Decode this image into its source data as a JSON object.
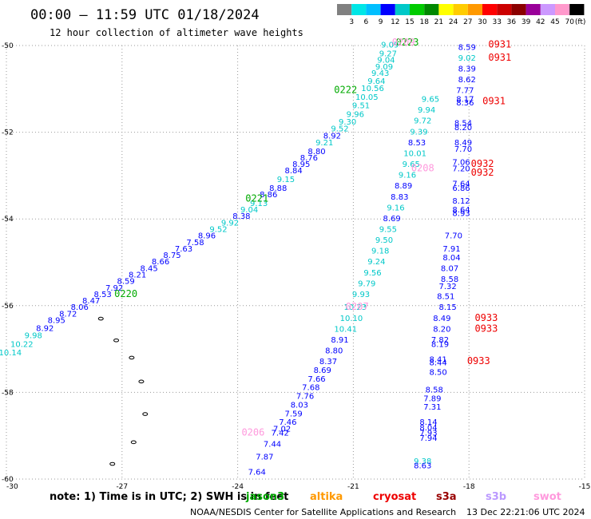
{
  "chart_data": {
    "type": "scatter",
    "title": "00:00 — 11:59 UTC 01/18/2024",
    "subtitle": "12 hour collection of altimeter wave heights",
    "xlabel": "",
    "ylabel": "",
    "xlim": [
      -30,
      -15
    ],
    "ylim": [
      -60,
      -50
    ],
    "x_ticks": [
      "-30",
      "-27",
      "-24",
      "-21",
      "-18",
      "-15"
    ],
    "y_ticks": [
      "-50",
      "-52",
      "-54",
      "-56",
      "-58",
      "-60"
    ],
    "grid": true,
    "colorbar": {
      "unit": "(ft)",
      "labels": [
        "3",
        "6",
        "9",
        "12",
        "15",
        "18",
        "21",
        "24",
        "27",
        "30",
        "33",
        "36",
        "39",
        "42",
        "45",
        "70"
      ],
      "colors": [
        "#808080",
        "#00e6e6",
        "#00bfff",
        "#0000ff",
        "#00c8c8",
        "#00cc00",
        "#008800",
        "#ffff00",
        "#ffcc00",
        "#ff9900",
        "#ff0000",
        "#cc0000",
        "#8b0000",
        "#990099",
        "#cc99ff",
        "#ff99cc",
        "#000000"
      ]
    },
    "series": [
      {
        "name": "jason3",
        "passes": [
          {
            "label": "0220",
            "lon": -26.9,
            "lat": -55.8
          },
          {
            "label": "0221",
            "lon": -23.5,
            "lat": -53.6
          },
          {
            "label": "0222",
            "lon": -21.2,
            "lat": -51.1
          },
          {
            "label": "0223",
            "lon": -19.6,
            "lat": -50.0
          }
        ],
        "points": [
          {
            "lon": -29.9,
            "lat": -57.15,
            "swh": "10.14"
          },
          {
            "lon": -29.6,
            "lat": -56.95,
            "swh": "10.22"
          },
          {
            "lon": -29.3,
            "lat": -56.75,
            "swh": "9.98"
          },
          {
            "lon": -29.0,
            "lat": -56.58,
            "swh": "8.92"
          },
          {
            "lon": -28.7,
            "lat": -56.4,
            "swh": "8.95"
          },
          {
            "lon": -28.4,
            "lat": -56.25,
            "swh": "8.72"
          },
          {
            "lon": -28.1,
            "lat": -56.1,
            "swh": "8.06"
          },
          {
            "lon": -27.8,
            "lat": -55.95,
            "swh": "8.47"
          },
          {
            "lon": -27.5,
            "lat": -55.8,
            "swh": "8.53"
          },
          {
            "lon": -27.2,
            "lat": -55.65,
            "swh": "7.92"
          },
          {
            "lon": -26.9,
            "lat": -55.5,
            "swh": "8.59"
          },
          {
            "lon": -26.6,
            "lat": -55.35,
            "swh": "8.21"
          },
          {
            "lon": -26.3,
            "lat": -55.2,
            "swh": "8.45"
          },
          {
            "lon": -26.0,
            "lat": -55.05,
            "swh": "8.66"
          },
          {
            "lon": -25.7,
            "lat": -54.9,
            "swh": "8.75"
          },
          {
            "lon": -25.4,
            "lat": -54.75,
            "swh": "7.63"
          },
          {
            "lon": -25.1,
            "lat": -54.6,
            "swh": "7.58"
          },
          {
            "lon": -24.8,
            "lat": -54.45,
            "swh": "8.96"
          },
          {
            "lon": -24.5,
            "lat": -54.3,
            "swh": "9.52"
          },
          {
            "lon": -24.2,
            "lat": -54.15,
            "swh": "9.92"
          },
          {
            "lon": -23.9,
            "lat": -54.0,
            "swh": "8.38"
          },
          {
            "lon": -23.7,
            "lat": -53.85,
            "swh": "9.04"
          },
          {
            "lon": -23.45,
            "lat": -53.7,
            "swh": "9.13"
          },
          {
            "lon": -23.2,
            "lat": -53.5,
            "swh": "8.86"
          },
          {
            "lon": -22.95,
            "lat": -53.35,
            "swh": "8.88"
          },
          {
            "lon": -22.75,
            "lat": -53.15,
            "swh": "9.15"
          },
          {
            "lon": -22.55,
            "lat": -52.95,
            "swh": "8.84"
          },
          {
            "lon": -22.35,
            "lat": -52.8,
            "swh": "8.95"
          },
          {
            "lon": -22.15,
            "lat": -52.65,
            "swh": "8.76"
          },
          {
            "lon": -21.95,
            "lat": -52.5,
            "swh": "8.80"
          },
          {
            "lon": -21.75,
            "lat": -52.3,
            "swh": "9.21"
          },
          {
            "lon": -21.55,
            "lat": -52.15,
            "swh": "8.92"
          },
          {
            "lon": -21.35,
            "lat": -51.98,
            "swh": "9.52"
          },
          {
            "lon": -21.15,
            "lat": -51.82,
            "swh": "9.30"
          },
          {
            "lon": -20.95,
            "lat": -51.65,
            "swh": "9.96"
          },
          {
            "lon": -20.8,
            "lat": -51.45,
            "swh": "9.51"
          },
          {
            "lon": -20.65,
            "lat": -51.25,
            "swh": "10.05"
          },
          {
            "lon": -20.5,
            "lat": -51.05,
            "swh": "10.56"
          },
          {
            "lon": -20.4,
            "lat": -50.88,
            "swh": "9.64"
          },
          {
            "lon": -20.3,
            "lat": -50.7,
            "swh": "9.43"
          },
          {
            "lon": -20.2,
            "lat": -50.55,
            "swh": "9.09"
          },
          {
            "lon": -20.15,
            "lat": -50.4,
            "swh": "9.04"
          },
          {
            "lon": -20.1,
            "lat": -50.25,
            "swh": "9.27"
          },
          {
            "lon": -20.05,
            "lat": -50.05,
            "swh": "9.09"
          }
        ]
      },
      {
        "name": "swot",
        "passes": [
          {
            "label": "0206",
            "lon": -23.6,
            "lat": -59.0
          },
          {
            "label": "0207",
            "lon": -20.9,
            "lat": -56.1
          },
          {
            "label": "0208",
            "lon": -19.2,
            "lat": -52.9
          },
          {
            "label": "0209",
            "lon": -19.7,
            "lat": -50.0
          }
        ],
        "points": [
          {
            "lon": -23.5,
            "lat": -59.9,
            "swh": "7.64"
          },
          {
            "lon": -23.3,
            "lat": -59.55,
            "swh": "7.87"
          },
          {
            "lon": -23.1,
            "lat": -59.25,
            "swh": "7.44"
          },
          {
            "lon": -22.9,
            "lat": -59.0,
            "swh": "7.42"
          },
          {
            "lon": -22.85,
            "lat": -58.9,
            "swh": "7.02"
          },
          {
            "lon": -22.7,
            "lat": -58.75,
            "swh": "7.46"
          },
          {
            "lon": -22.55,
            "lat": -58.55,
            "swh": "7.59"
          },
          {
            "lon": -22.4,
            "lat": -58.35,
            "swh": "8.03"
          },
          {
            "lon": -22.25,
            "lat": -58.15,
            "swh": "7.76"
          },
          {
            "lon": -22.1,
            "lat": -57.95,
            "swh": "7.68"
          },
          {
            "lon": -21.95,
            "lat": -57.75,
            "swh": "7.66"
          },
          {
            "lon": -21.8,
            "lat": -57.55,
            "swh": "8.69"
          },
          {
            "lon": -21.65,
            "lat": -57.35,
            "swh": "8.37"
          },
          {
            "lon": -21.5,
            "lat": -57.1,
            "swh": "8.80"
          },
          {
            "lon": -21.35,
            "lat": -56.85,
            "swh": "8.91"
          },
          {
            "lon": -21.2,
            "lat": -56.6,
            "swh": "10.41"
          },
          {
            "lon": -21.05,
            "lat": -56.35,
            "swh": "10.10"
          },
          {
            "lon": -20.95,
            "lat": -56.1,
            "swh": "10.23"
          },
          {
            "lon": -20.8,
            "lat": -55.8,
            "swh": "9.93"
          },
          {
            "lon": -20.65,
            "lat": -55.55,
            "swh": "9.79"
          },
          {
            "lon": -20.5,
            "lat": -55.3,
            "swh": "9.56"
          },
          {
            "lon": -20.4,
            "lat": -55.05,
            "swh": "9.24"
          },
          {
            "lon": -20.3,
            "lat": -54.8,
            "swh": "9.18"
          },
          {
            "lon": -20.2,
            "lat": -54.55,
            "swh": "9.50"
          },
          {
            "lon": -20.1,
            "lat": -54.3,
            "swh": "9.55"
          },
          {
            "lon": -20.0,
            "lat": -54.05,
            "swh": "8.69"
          },
          {
            "lon": -19.9,
            "lat": -53.8,
            "swh": "9.16"
          },
          {
            "lon": -19.8,
            "lat": -53.55,
            "swh": "8.83"
          },
          {
            "lon": -19.7,
            "lat": -53.3,
            "swh": "8.89"
          },
          {
            "lon": -19.6,
            "lat": -53.05,
            "swh": "9.16"
          },
          {
            "lon": -19.5,
            "lat": -52.8,
            "swh": "9.65"
          },
          {
            "lon": -19.4,
            "lat": -52.55,
            "swh": "10.01"
          },
          {
            "lon": -19.35,
            "lat": -52.3,
            "swh": "8.53"
          },
          {
            "lon": -19.3,
            "lat": -52.05,
            "swh": "9.39"
          },
          {
            "lon": -19.2,
            "lat": -51.8,
            "swh": "9.72"
          },
          {
            "lon": -19.1,
            "lat": -51.55,
            "swh": "9.94"
          },
          {
            "lon": -19.0,
            "lat": -51.3,
            "swh": "9.65"
          }
        ]
      },
      {
        "name": "cryosat",
        "passes": [
          {
            "label": "0931",
            "lon": -17.2,
            "lat": -50.05
          },
          {
            "label": "0931",
            "lon": -17.2,
            "lat": -50.35
          },
          {
            "label": "0931",
            "lon": -17.35,
            "lat": -51.35
          },
          {
            "label": "0932",
            "lon": -17.65,
            "lat": -52.8
          },
          {
            "label": "0932",
            "lon": -17.65,
            "lat": -53.0
          },
          {
            "lon": -17.55,
            "lat": -56.35,
            "label": "0933"
          },
          {
            "lon": -17.55,
            "lat": -56.6,
            "label": "0933"
          },
          {
            "lon": -17.75,
            "lat": -57.35,
            "label": "0933"
          }
        ],
        "points": [
          {
            "lon": -18.05,
            "lat": -50.1,
            "swh": "8.59"
          },
          {
            "lon": -18.05,
            "lat": -50.35,
            "swh": "9.02"
          },
          {
            "lon": -18.05,
            "lat": -50.6,
            "swh": "8.39"
          },
          {
            "lon": -18.05,
            "lat": -50.85,
            "swh": "8.62"
          },
          {
            "lon": -18.1,
            "lat": -51.1,
            "swh": "7.77"
          },
          {
            "lon": -18.1,
            "lat": -51.3,
            "swh": "8.17"
          },
          {
            "lon": -18.1,
            "lat": -51.38,
            "swh": "8.36"
          },
          {
            "lon": -18.15,
            "lat": -51.85,
            "swh": "8.54"
          },
          {
            "lon": -18.15,
            "lat": -51.95,
            "swh": "8.20"
          },
          {
            "lon": -18.15,
            "lat": -52.3,
            "swh": "8.49"
          },
          {
            "lon": -18.15,
            "lat": -52.45,
            "swh": "7.70"
          },
          {
            "lon": -18.2,
            "lat": -52.75,
            "swh": "7.06"
          },
          {
            "lon": -18.2,
            "lat": -52.9,
            "swh": "7.20"
          },
          {
            "lon": -18.2,
            "lat": -53.25,
            "swh": "7.64"
          },
          {
            "lon": -18.2,
            "lat": -53.35,
            "swh": "6.86"
          },
          {
            "lon": -18.2,
            "lat": -53.65,
            "swh": "8.12"
          },
          {
            "lon": -18.2,
            "lat": -53.85,
            "swh": "8.64"
          },
          {
            "lon": -18.2,
            "lat": -53.93,
            "swh": "8.93"
          },
          {
            "lon": -18.4,
            "lat": -54.45,
            "swh": "7.70"
          },
          {
            "lon": -18.45,
            "lat": -54.75,
            "swh": "7.91"
          },
          {
            "lon": -18.45,
            "lat": -54.95,
            "swh": "8.04"
          },
          {
            "lon": -18.5,
            "lat": -55.2,
            "swh": "8.07"
          },
          {
            "lon": -18.5,
            "lat": -55.45,
            "swh": "8.58"
          },
          {
            "lon": -18.55,
            "lat": -55.62,
            "swh": "7.32"
          },
          {
            "lon": -18.6,
            "lat": -55.85,
            "swh": "8.51"
          },
          {
            "lon": -18.55,
            "lat": -56.1,
            "swh": "8.15"
          },
          {
            "lon": -18.7,
            "lat": -56.35,
            "swh": "8.49"
          },
          {
            "lon": -18.7,
            "lat": -56.6,
            "swh": "8.20"
          },
          {
            "lon": -18.75,
            "lat": -56.85,
            "swh": "7.82"
          },
          {
            "lon": -18.75,
            "lat": -56.95,
            "swh": "8.19"
          },
          {
            "lon": -18.8,
            "lat": -57.3,
            "swh": "8.41"
          },
          {
            "lon": -18.8,
            "lat": -57.38,
            "swh": "8.44"
          },
          {
            "lon": -18.8,
            "lat": -57.6,
            "swh": "8.50"
          },
          {
            "lon": -18.9,
            "lat": -58.0,
            "swh": "8.58"
          },
          {
            "lon": -18.95,
            "lat": -58.2,
            "swh": "7.89"
          },
          {
            "lon": -18.95,
            "lat": -58.4,
            "swh": "7.31"
          },
          {
            "lon": -19.05,
            "lat": -58.75,
            "swh": "8.14"
          },
          {
            "lon": -19.05,
            "lat": -58.88,
            "swh": "8.04"
          },
          {
            "lon": -19.05,
            "lat": -59.0,
            "swh": "7.93"
          },
          {
            "lon": -19.05,
            "lat": -59.12,
            "swh": "7.94"
          },
          {
            "lon": -19.2,
            "lat": -59.65,
            "swh": "9.38"
          },
          {
            "lon": -19.2,
            "lat": -59.75,
            "swh": "8.63"
          }
        ]
      }
    ],
    "islands": [
      {
        "lon": -27.55,
        "lat": -56.3
      },
      {
        "lon": -27.15,
        "lat": -56.8
      },
      {
        "lon": -26.75,
        "lat": -57.2
      },
      {
        "lon": -26.5,
        "lat": -57.75
      },
      {
        "lon": -26.4,
        "lat": -58.5
      },
      {
        "lon": -26.7,
        "lat": -59.15
      },
      {
        "lon": -27.25,
        "lat": -59.65
      }
    ]
  },
  "note": {
    "prefix": "note:  1) Time is in UTC;  2) SWH is in feet",
    "satellites": [
      {
        "name": "jason3",
        "color": "#00aa00"
      },
      {
        "name": "altika",
        "color": "#ff9900"
      },
      {
        "name": "cryosat",
        "color": "#ee0000"
      },
      {
        "name": "s3a",
        "color": "#990000"
      },
      {
        "name": "s3b",
        "color": "#bb99ff"
      },
      {
        "name": "swot",
        "color": "#ff99dd"
      }
    ]
  },
  "footer": {
    "credit": "NOAA/NESDIS Center for Satellite Applications and Research",
    "timestamp": "13 Dec 22:21:06 UTC 2024"
  }
}
